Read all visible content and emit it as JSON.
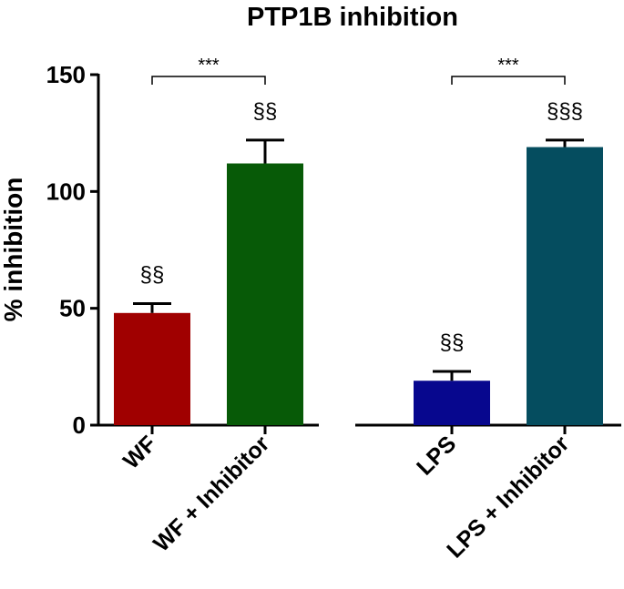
{
  "chart_data": {
    "type": "bar",
    "title": "PTP1B inhibition",
    "ylabel": "% inhibition",
    "xlabel": "",
    "ylim": [
      0,
      150
    ],
    "yticks": [
      0,
      50,
      100,
      150
    ],
    "categories": [
      "WF",
      "WF + Inhibitor",
      "LPS",
      "LPS + Inhibitor"
    ],
    "values": [
      48,
      112,
      19,
      119
    ],
    "errors": [
      4,
      10,
      4,
      3
    ],
    "colors": [
      "#a00000",
      "#075a07",
      "#07078e",
      "#054d5f"
    ],
    "bar_annotations": [
      "§§",
      "§§",
      "§§",
      "§§§"
    ],
    "significance": [
      {
        "from": 0,
        "to": 1,
        "label": "***"
      },
      {
        "from": 2,
        "to": 3,
        "label": "***"
      }
    ],
    "grid": false,
    "legend": "none"
  }
}
